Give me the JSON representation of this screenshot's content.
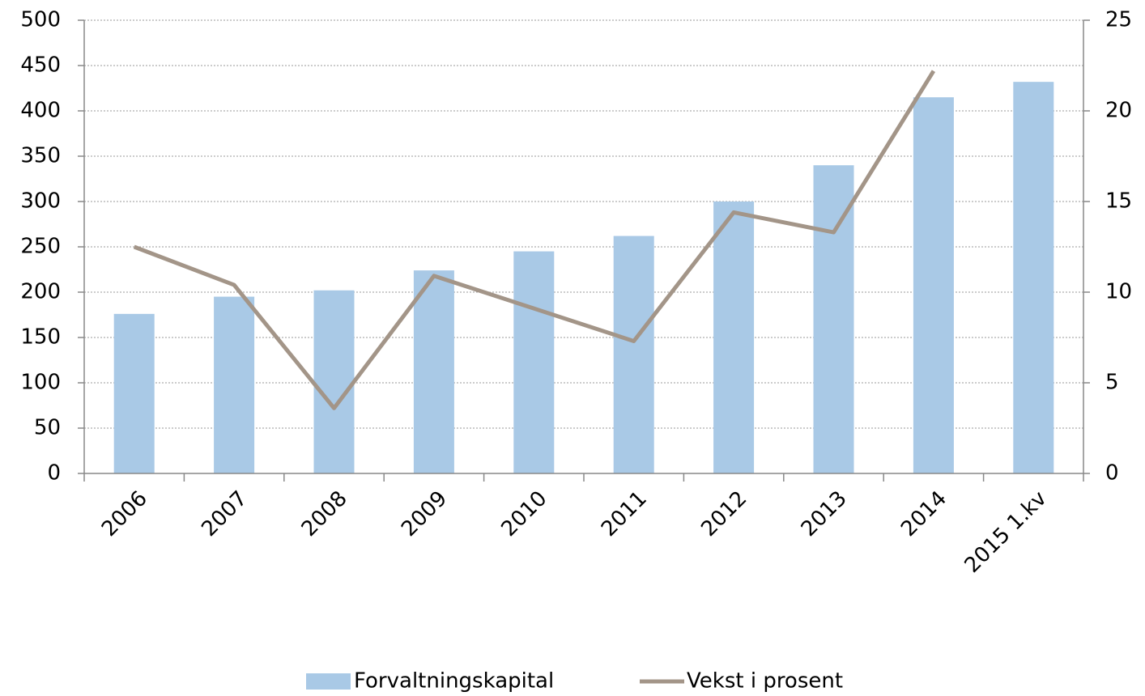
{
  "chart_data": {
    "type": "bar",
    "categories": [
      "2006",
      "2007",
      "2008",
      "2009",
      "2010",
      "2011",
      "2012",
      "2013",
      "2014",
      "2015 1.kv"
    ],
    "series": [
      {
        "name": "Forvaltningskapital",
        "type": "bar",
        "color": "#a9c9e6",
        "values": [
          176,
          195,
          202,
          224,
          245,
          262,
          300,
          340,
          415,
          432
        ]
      },
      {
        "name": "Vekst i prosent",
        "type": "line",
        "axis": "y2",
        "color": "#a39588",
        "values": [
          12.5,
          10.4,
          3.6,
          10.9,
          9.1,
          7.3,
          14.4,
          13.3,
          22.2,
          null
        ]
      }
    ],
    "ylim": [
      0,
      500
    ],
    "yticks": [
      0,
      50,
      100,
      150,
      200,
      250,
      300,
      350,
      400,
      450,
      500
    ],
    "y2lim": [
      0,
      25
    ],
    "y2ticks": [
      0,
      5,
      10,
      15,
      20,
      25
    ],
    "grid": true,
    "legend": "bottom"
  }
}
